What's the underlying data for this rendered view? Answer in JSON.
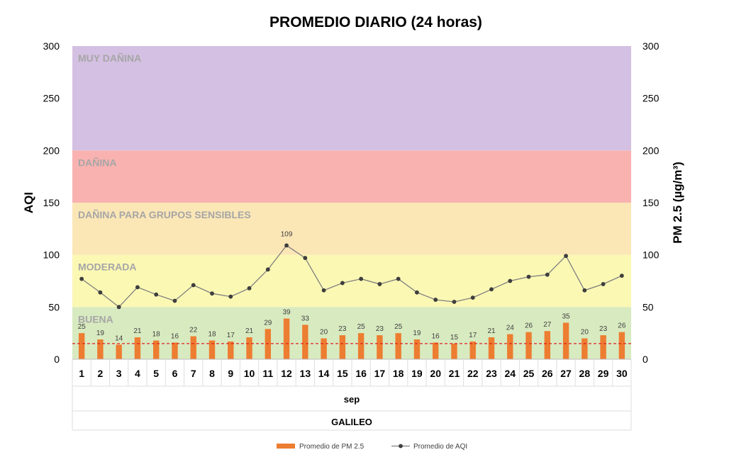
{
  "chart_data": {
    "type": "bar",
    "title": "PROMEDIO DIARIO (24 horas)",
    "ylabel": "AQI",
    "y2label": "PM 2.5 (µg/m³)",
    "ylim": [
      0,
      300
    ],
    "y2lim": [
      0,
      300
    ],
    "yticks": [
      0,
      50,
      100,
      150,
      200,
      250,
      300
    ],
    "categories": [
      "1",
      "2",
      "3",
      "4",
      "5",
      "6",
      "7",
      "8",
      "9",
      "10",
      "11",
      "12",
      "13",
      "14",
      "15",
      "16",
      "17",
      "18",
      "19",
      "20",
      "21",
      "22",
      "23",
      "24",
      "25",
      "26",
      "27",
      "28",
      "29",
      "30"
    ],
    "x_group_month": "sep",
    "x_group_station": "GALILEO",
    "series": [
      {
        "name": "Promedio de PM 2.5",
        "type": "bar",
        "color": "#ed7d31",
        "values": [
          25,
          19,
          14,
          21,
          18,
          16,
          22,
          18,
          17,
          21,
          29,
          39,
          33,
          20,
          23,
          25,
          23,
          25,
          19,
          16,
          15,
          17,
          21,
          24,
          26,
          27,
          35,
          20,
          23,
          26
        ]
      },
      {
        "name": "Promedio de AQI",
        "type": "line",
        "color": "#7f7f7f",
        "marker_color": "#404040",
        "values": [
          77,
          64,
          50,
          69,
          62,
          56,
          71,
          63,
          60,
          68,
          86,
          109,
          97,
          66,
          73,
          77,
          72,
          77,
          64,
          57,
          55,
          59,
          67,
          75,
          79,
          81,
          99,
          66,
          72,
          80
        ],
        "labeled_points": [
          {
            "index": 11,
            "label": "109"
          }
        ]
      }
    ],
    "reference_line": {
      "value": 15,
      "color": "#e02020",
      "style": "dashed"
    },
    "bands": [
      {
        "label": "BUENA",
        "from": 0,
        "to": 50,
        "color": "#d8eac0"
      },
      {
        "label": "MODERADA",
        "from": 50,
        "to": 100,
        "color": "#fbf8b4"
      },
      {
        "label": "DAÑINA PARA GRUPOS SENSIBLES",
        "from": 100,
        "to": 150,
        "color": "#fbe6b6"
      },
      {
        "label": "DAÑINA",
        "from": 150,
        "to": 200,
        "color": "#f9b2b0"
      },
      {
        "label": "MUY DAÑINA",
        "from": 200,
        "to": 300,
        "color": "#d4c0e2"
      }
    ],
    "legend": {
      "position": "bottom"
    },
    "grid": false
  }
}
